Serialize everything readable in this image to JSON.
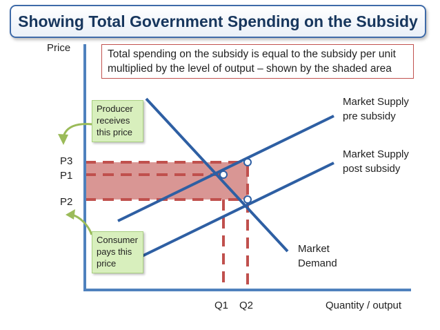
{
  "title": "Showing Total Government Spending on the Subsidy",
  "note": "Total spending on the subsidy is equal to the subsidy per unit multiplied by the level of output – shown by the shaded area",
  "axes": {
    "y_label": "Price",
    "x_label": "Quantity / output"
  },
  "price_labels": {
    "p3": "P3",
    "p1": "P1",
    "p2": "P2"
  },
  "quantity_labels": {
    "q1": "Q1",
    "q2": "Q2"
  },
  "curves": {
    "supply_pre": "Market Supply pre subsidy",
    "supply_post": "Market Supply post subsidy",
    "demand": "Market Demand"
  },
  "callouts": {
    "producer": "Producer receives this price",
    "consumer": "Consumer pays this price"
  },
  "colors": {
    "axis": "#4f81bd",
    "curve": "#2e5fa3",
    "subsidy": "#c0504d",
    "shaded_area": "#d99694",
    "callout": "#d8efbd",
    "arrow": "#9bbb59"
  }
}
